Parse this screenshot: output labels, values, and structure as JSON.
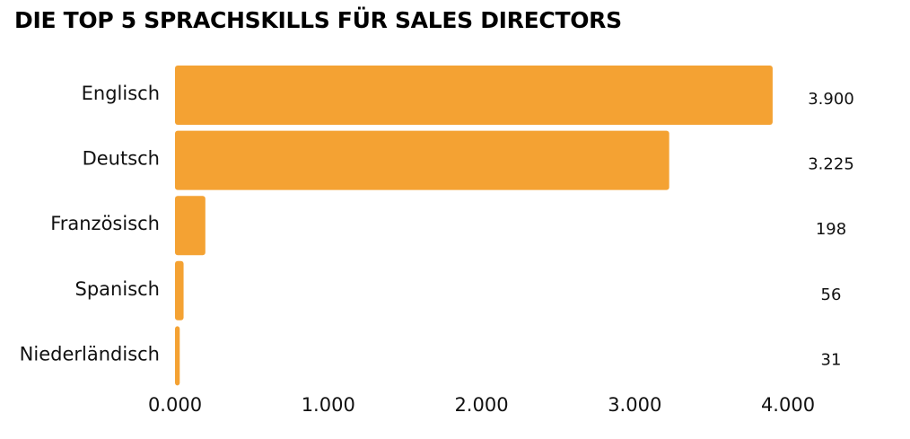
{
  "chart_data": {
    "type": "bar",
    "orientation": "horizontal",
    "title": "DIE TOP 5 SPRACHSKILLS FÜR SALES DIRECTORS",
    "categories": [
      "Englisch",
      "Deutsch",
      "Französisch",
      "Spanisch",
      "Niederländisch"
    ],
    "values": [
      3900,
      3225,
      198,
      56,
      31
    ],
    "value_labels": [
      "3.900",
      "3.225",
      "198",
      "56",
      "31"
    ],
    "xlim": [
      0,
      4000
    ],
    "x_ticks": [
      0,
      1000,
      2000,
      3000,
      4000
    ],
    "x_tick_labels": [
      "0.000",
      "1.000",
      "2.000",
      "3.000",
      "4.000"
    ],
    "xlabel": "",
    "ylabel": "",
    "grid": false,
    "legend": "none",
    "bar_color": "#F4A233"
  }
}
